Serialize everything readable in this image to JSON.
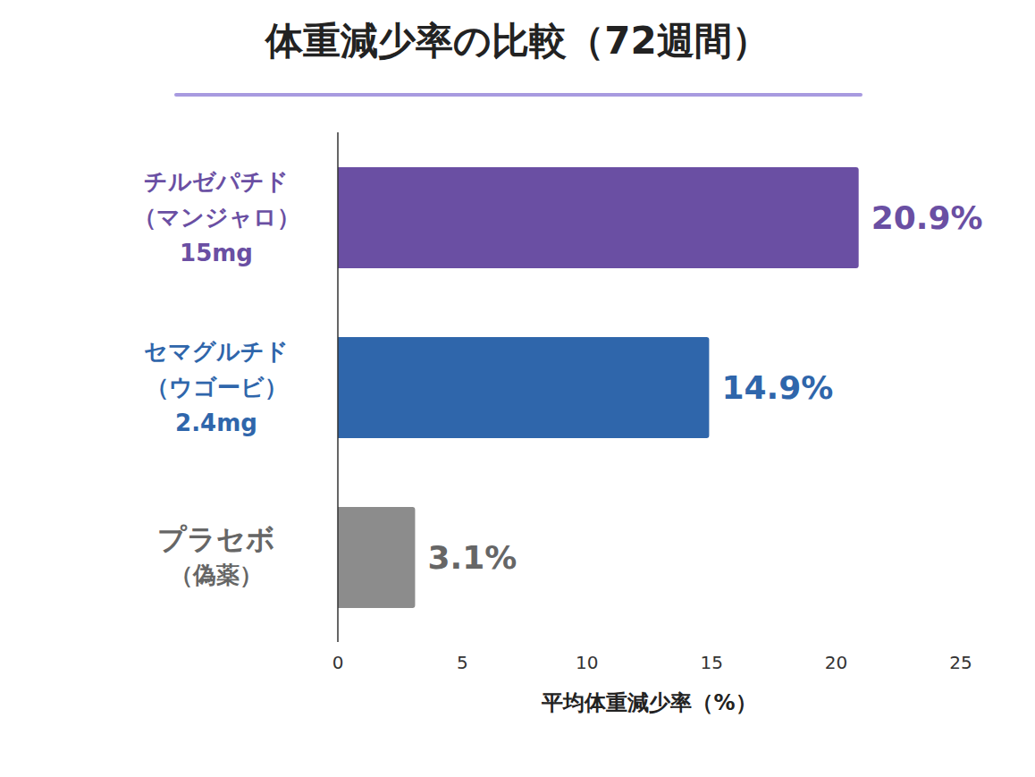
{
  "chart_data": {
    "type": "bar",
    "title": "体重減少率の比較（72週間）",
    "orientation": "horizontal",
    "categories": [
      "チルゼパチド\n（マンジャロ）\n15mg",
      "セマグルチド\n（ウゴービ）\n2.4mg",
      "プラセボ\n（偽薬）"
    ],
    "values": [
      20.9,
      14.9,
      3.1
    ],
    "value_labels": [
      "20.9%",
      "14.9%",
      "3.1%"
    ],
    "colors": [
      "#6a4fa3",
      "#2f66ab",
      "#8c8c8c"
    ],
    "x_label": "平均体重減少率（%）",
    "xlim": [
      0,
      25
    ],
    "xticks": [
      0,
      5,
      10,
      15,
      20,
      25
    ],
    "grid": false,
    "data_labels": true
  }
}
